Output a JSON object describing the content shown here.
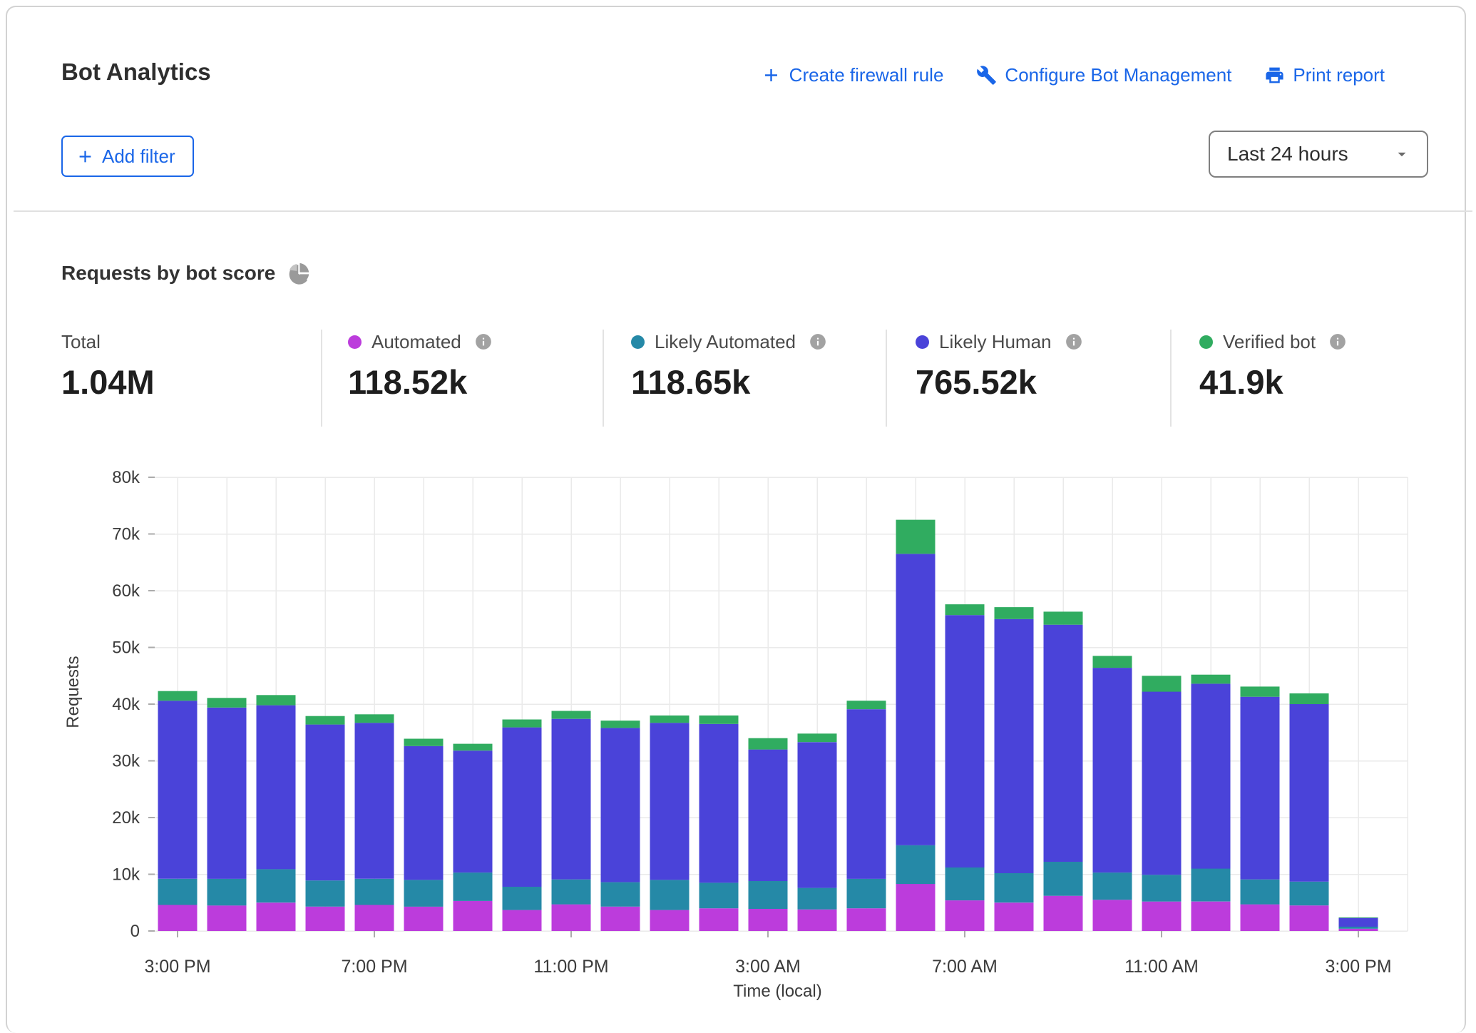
{
  "header": {
    "title": "Bot Analytics",
    "actions": [
      {
        "label": "Create firewall rule",
        "icon": "plus-icon"
      },
      {
        "label": "Configure Bot Management",
        "icon": "wrench-icon"
      },
      {
        "label": "Print report",
        "icon": "printer-icon"
      }
    ],
    "add_filter_label": "Add filter",
    "time_range_value": "Last 24 hours"
  },
  "section": {
    "heading": "Requests by bot score",
    "stats": [
      {
        "label": "Total",
        "value": "1.04M",
        "color": null
      },
      {
        "label": "Automated",
        "value": "118.52k",
        "color": "#BC3CDC"
      },
      {
        "label": "Likely Automated",
        "value": "118.65k",
        "color": "#2589A7"
      },
      {
        "label": "Likely Human",
        "value": "765.52k",
        "color": "#4A43D9"
      },
      {
        "label": "Verified bot",
        "value": "41.9k",
        "color": "#30AC60"
      }
    ]
  },
  "chart_data": {
    "type": "bar",
    "stacked": true,
    "title": "Requests by bot score",
    "xlabel": "Time (local)",
    "ylabel": "Requests",
    "ylim_k": [
      0,
      80
    ],
    "grid": "horizontal+vertical",
    "y_tick_labels": [
      "0",
      "10k",
      "20k",
      "30k",
      "40k",
      "50k",
      "60k",
      "70k",
      "80k"
    ],
    "x_tick_indices": [
      0,
      4,
      8,
      12,
      16,
      20,
      24
    ],
    "x_tick_labels": [
      "3:00 PM",
      "7:00 PM",
      "11:00 PM",
      "3:00 AM",
      "7:00 AM",
      "11:00 AM",
      "3:00 PM"
    ],
    "hours": [
      "3:00 PM",
      "4:00 PM",
      "5:00 PM",
      "6:00 PM",
      "7:00 PM",
      "8:00 PM",
      "9:00 PM",
      "10:00 PM",
      "11:00 PM",
      "12:00 AM",
      "1:00 AM",
      "2:00 AM",
      "3:00 AM",
      "4:00 AM",
      "5:00 AM",
      "6:00 AM",
      "7:00 AM",
      "8:00 AM",
      "9:00 AM",
      "10:00 AM",
      "11:00 AM",
      "12:00 PM",
      "1:00 PM",
      "2:00 PM",
      "3:00 PM"
    ],
    "series": [
      {
        "name": "Automated",
        "color": "#BC3CDC",
        "values_k": [
          4.6,
          4.5,
          5.0,
          4.3,
          4.6,
          4.3,
          5.3,
          3.7,
          4.7,
          4.3,
          3.7,
          4.0,
          3.9,
          3.8,
          4.0,
          8.3,
          5.4,
          5.0,
          6.2,
          5.5,
          5.2,
          5.2,
          4.7,
          4.5,
          0.4
        ]
      },
      {
        "name": "Likely Automated",
        "color": "#2589A7",
        "values_k": [
          4.6,
          4.7,
          5.9,
          4.6,
          4.6,
          4.7,
          5.0,
          4.1,
          4.4,
          4.3,
          5.3,
          4.5,
          4.9,
          3.8,
          5.2,
          6.8,
          5.8,
          5.2,
          6.0,
          4.8,
          4.7,
          5.8,
          4.4,
          4.2,
          0.35
        ]
      },
      {
        "name": "Likely Human",
        "color": "#4A43D9",
        "values_k": [
          31.4,
          30.2,
          28.9,
          27.5,
          27.5,
          23.6,
          21.5,
          28.1,
          28.3,
          27.2,
          27.7,
          28.0,
          23.2,
          25.7,
          29.9,
          51.4,
          44.5,
          44.8,
          41.8,
          36.1,
          32.3,
          32.6,
          32.2,
          31.3,
          1.55
        ]
      },
      {
        "name": "Verified bot",
        "color": "#30AC60",
        "values_k": [
          1.7,
          1.7,
          1.8,
          1.5,
          1.5,
          1.3,
          1.2,
          1.4,
          1.4,
          1.3,
          1.3,
          1.5,
          2.0,
          1.5,
          1.5,
          6.0,
          1.9,
          2.1,
          2.3,
          2.1,
          2.8,
          1.6,
          1.8,
          1.9,
          0.1
        ]
      }
    ]
  },
  "colors": {
    "link_blue": "#1A66E8",
    "grid_line": "#EAEAEA",
    "tick_mark": "#ABABAB",
    "axis_text": "#3b3b3b",
    "card_border": "#D2D2D2"
  }
}
